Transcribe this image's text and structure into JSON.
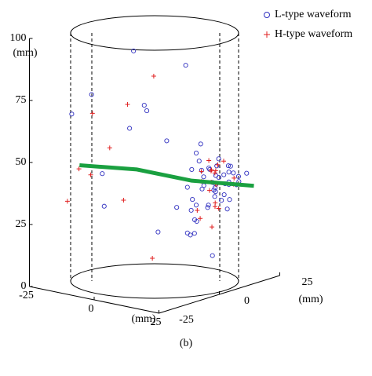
{
  "chart_data": {
    "type": "scatter3d",
    "x_label": "(mm)",
    "y_label": "(mm)",
    "z_label": "(mm)",
    "caption": "(b)",
    "xlim": [
      -25,
      25
    ],
    "ylim": [
      -25,
      25
    ],
    "zlim": [
      0,
      100
    ],
    "xticks": [
      -25,
      0,
      25
    ],
    "yticks": [
      -25,
      0,
      25
    ],
    "zticks": [
      0,
      25,
      50,
      75,
      100
    ],
    "legend": "upper right",
    "series": [
      {
        "name": "L-type waveform",
        "color": "#3030c0",
        "marker": "o",
        "x": [
          5,
          8,
          10,
          12,
          3,
          6,
          9,
          15,
          7,
          4,
          11,
          2,
          14,
          8,
          6,
          10,
          5,
          13,
          9,
          7,
          0,
          -5,
          -10,
          -15,
          -8,
          -3,
          12,
          16,
          4,
          9,
          6,
          11,
          3,
          7,
          10,
          -2,
          -12,
          -18,
          -6,
          1,
          8,
          5,
          14,
          10,
          2,
          6,
          9,
          12,
          -4,
          3,
          7,
          15,
          11,
          8,
          -9,
          0,
          4,
          6,
          10,
          13
        ],
        "y": [
          15,
          18,
          20,
          12,
          22,
          16,
          10,
          14,
          19,
          21,
          17,
          13,
          9,
          24,
          11,
          15,
          20,
          8,
          18,
          23,
          5,
          -5,
          2,
          -10,
          10,
          0,
          22,
          12,
          18,
          6,
          25,
          3,
          14,
          9,
          20,
          15,
          -8,
          -15,
          20,
          18,
          5,
          10,
          16,
          24,
          7,
          12,
          19,
          21,
          0,
          14,
          17,
          22,
          11,
          8,
          -12,
          25,
          16,
          13,
          20,
          10
        ],
        "z": [
          35,
          38,
          40,
          33,
          30,
          42,
          36,
          28,
          45,
          37,
          32,
          25,
          40,
          38,
          22,
          44,
          34,
          30,
          29,
          41,
          55,
          62,
          90,
          75,
          15,
          68,
          36,
          39,
          26,
          33,
          40,
          20,
          48,
          18,
          35,
          82,
          30,
          68,
          12,
          50,
          38,
          43,
          31,
          37,
          28,
          46,
          39,
          35,
          70,
          27,
          33,
          40,
          44,
          24,
          45,
          30,
          38,
          42,
          36,
          10
        ]
      },
      {
        "name": "H-type waveform",
        "color": "#e02020",
        "marker": "+",
        "x": [
          5,
          10,
          -10,
          12,
          -20,
          8,
          3,
          14,
          -5,
          6,
          9,
          -15,
          11,
          2,
          7,
          13,
          -8,
          4,
          10,
          6,
          -12,
          15,
          1,
          8,
          5,
          12,
          -3,
          9,
          7,
          -18
        ],
        "y": [
          18,
          12,
          -15,
          20,
          -5,
          15,
          22,
          10,
          5,
          16,
          8,
          -20,
          14,
          24,
          19,
          11,
          -10,
          21,
          13,
          17,
          0,
          9,
          -2,
          20,
          14,
          6,
          -8,
          23,
          12,
          -12
        ],
        "z": [
          40,
          35,
          70,
          38,
          40,
          42,
          33,
          30,
          80,
          45,
          28,
          35,
          37,
          40,
          25,
          43,
          55,
          39,
          20,
          36,
          30,
          32,
          10,
          44,
          41,
          26,
          73,
          34,
          38,
          45
        ]
      }
    ],
    "trend": {
      "color": "#1aa040",
      "x": [
        -15,
        -5,
        5,
        15
      ],
      "y": [
        -15,
        -2,
        10,
        25
      ],
      "z": [
        48,
        44.5,
        38.5,
        34
      ]
    }
  }
}
